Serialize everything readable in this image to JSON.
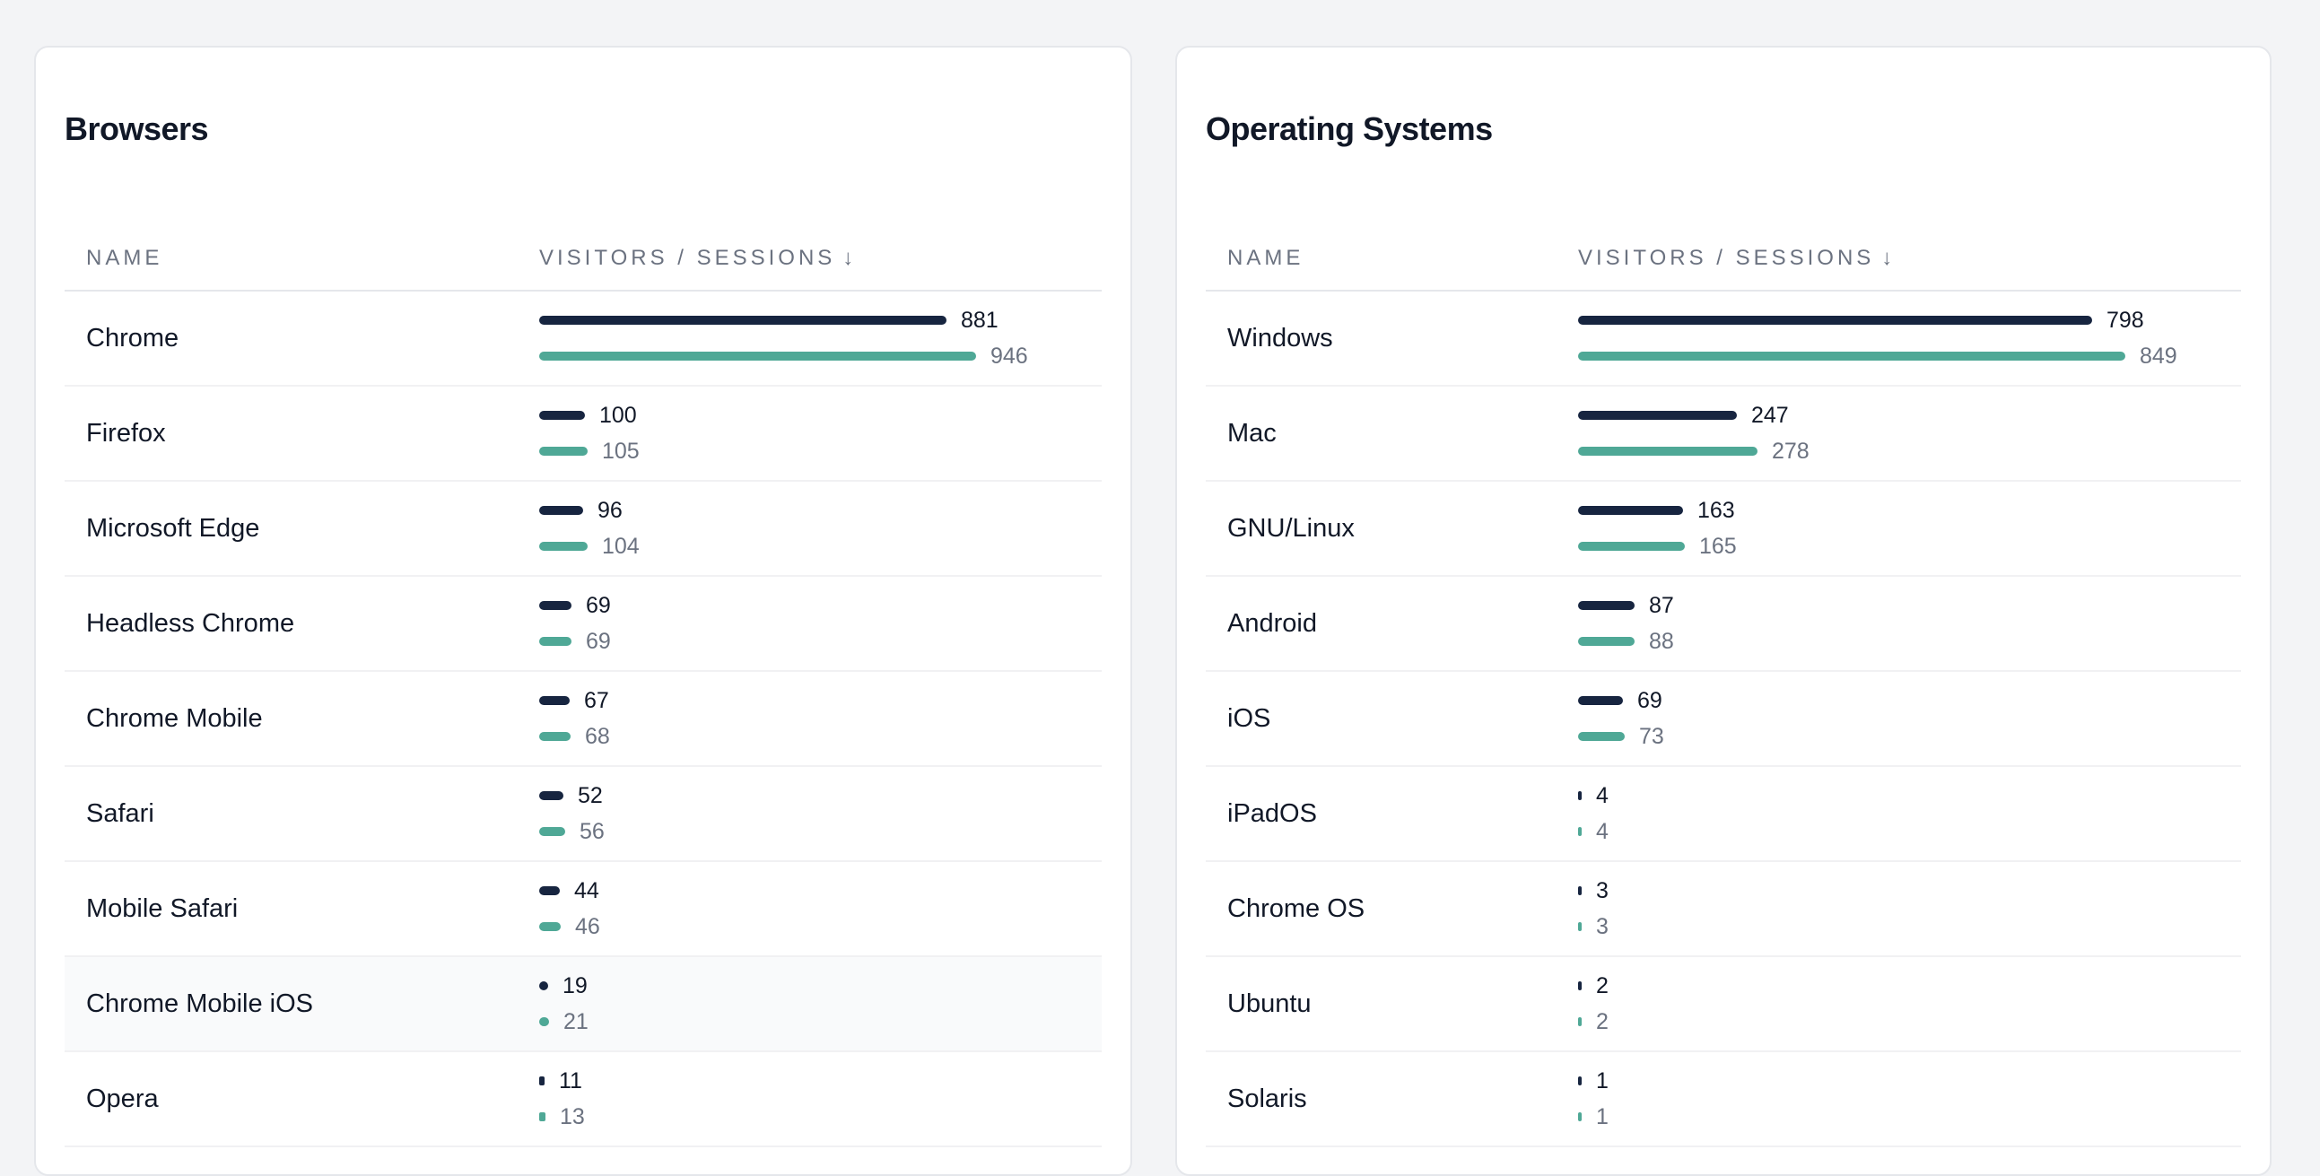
{
  "browsers": {
    "title": "Browsers",
    "columns": {
      "name": "NAME",
      "metric": "VISITORS / SESSIONS"
    },
    "rows": [
      {
        "name": "Chrome",
        "visitors": "881",
        "sessions": "946"
      },
      {
        "name": "Firefox",
        "visitors": "100",
        "sessions": "105"
      },
      {
        "name": "Microsoft Edge",
        "visitors": "96",
        "sessions": "104"
      },
      {
        "name": "Headless Chrome",
        "visitors": "69",
        "sessions": "69"
      },
      {
        "name": "Chrome Mobile",
        "visitors": "67",
        "sessions": "68"
      },
      {
        "name": "Safari",
        "visitors": "52",
        "sessions": "56"
      },
      {
        "name": "Mobile Safari",
        "visitors": "44",
        "sessions": "46"
      },
      {
        "name": "Chrome Mobile iOS",
        "visitors": "19",
        "sessions": "21"
      },
      {
        "name": "Opera",
        "visitors": "11",
        "sessions": "13"
      }
    ]
  },
  "operating_systems": {
    "title": "Operating Systems",
    "columns": {
      "name": "NAME",
      "metric": "VISITORS / SESSIONS"
    },
    "rows": [
      {
        "name": "Windows",
        "visitors": "798",
        "sessions": "849"
      },
      {
        "name": "Mac",
        "visitors": "247",
        "sessions": "278"
      },
      {
        "name": "GNU/Linux",
        "visitors": "163",
        "sessions": "165"
      },
      {
        "name": "Android",
        "visitors": "87",
        "sessions": "88"
      },
      {
        "name": "iOS",
        "visitors": "69",
        "sessions": "73"
      },
      {
        "name": "iPadOS",
        "visitors": "4",
        "sessions": "4"
      },
      {
        "name": "Chrome OS",
        "visitors": "3",
        "sessions": "3"
      },
      {
        "name": "Ubuntu",
        "visitors": "2",
        "sessions": "2"
      },
      {
        "name": "Solaris",
        "visitors": "1",
        "sessions": "1"
      }
    ]
  },
  "colors": {
    "visitors_bar": "#172540",
    "sessions_bar": "#4fa896",
    "sort_icon": "arrow-down-icon"
  }
}
